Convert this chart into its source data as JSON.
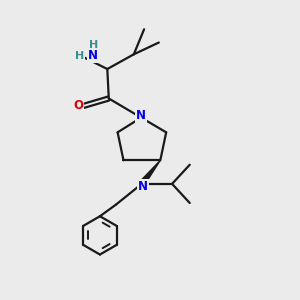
{
  "bg_color": "#ebebeb",
  "bond_color": "#1a1a1a",
  "N_color": "#0000ee",
  "O_color": "#dd0000",
  "NH2_H_color": "#3a9090",
  "line_width": 1.6,
  "fig_size": [
    3.0,
    3.0
  ],
  "dpi": 100,
  "xlim": [
    0,
    10
  ],
  "ylim": [
    0,
    10
  ]
}
